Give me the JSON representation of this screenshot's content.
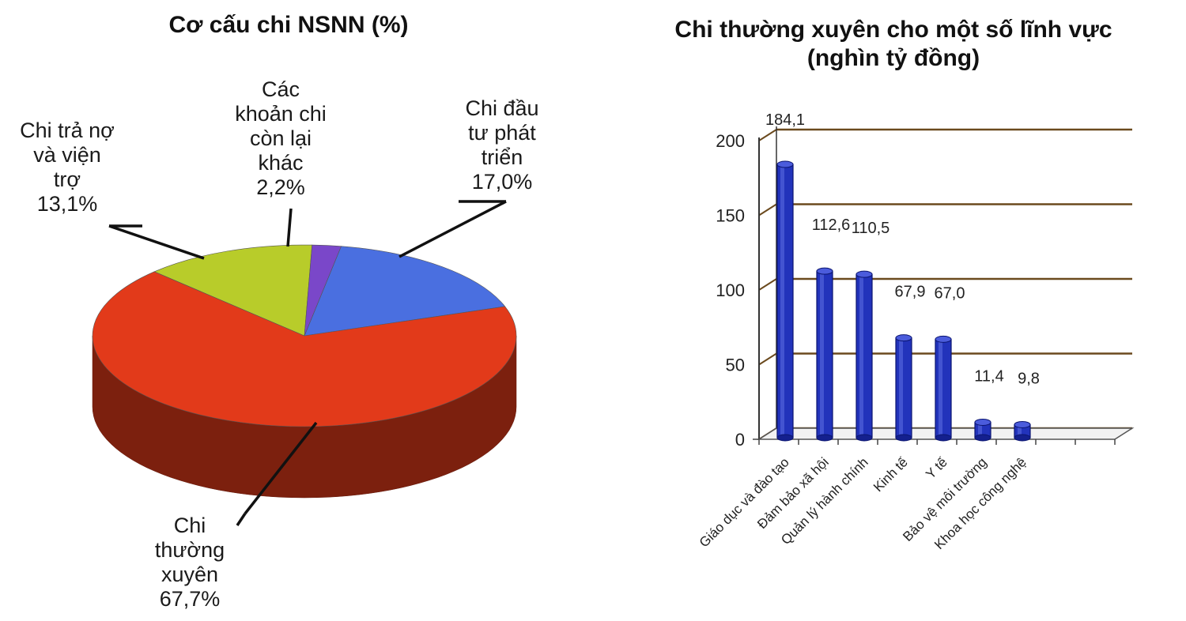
{
  "chart_data": [
    {
      "type": "pie",
      "title": "Cơ cấu chi NSNN (%)",
      "slices": [
        {
          "label_lines": [
            "Chi đầu",
            "tư phát",
            "triển",
            "17,0%"
          ],
          "value": 17.0,
          "color": "#4a6fe0"
        },
        {
          "label_lines": [
            "Chi",
            "thường",
            "xuyên",
            "67,7%"
          ],
          "value": 67.7,
          "color": "#e23a1a"
        },
        {
          "label_lines": [
            "Chi trả nợ",
            "và viện",
            "trợ",
            "13,1%"
          ],
          "value": 13.1,
          "color": "#b8cc2a"
        },
        {
          "label_lines": [
            "Các",
            "khoản chi",
            "còn lại",
            "khác",
            "2,2%"
          ],
          "value": 2.2,
          "color": "#7a47c9"
        }
      ]
    },
    {
      "type": "bar",
      "title": "Chi thường xuyên cho một số lĩnh vực",
      "subtitle": "(nghìn tỷ đồng)",
      "categories": [
        "Giáo dục và đào tạo",
        "Đảm bảo xã hội",
        "Quản lý hành chính",
        "Kinh tế",
        "Y tế",
        "Bảo vệ môi trường",
        "Khoa học công nghệ"
      ],
      "values": [
        184.1,
        112.6,
        110.5,
        67.9,
        67.0,
        11.4,
        9.8
      ],
      "value_labels": [
        "184,1",
        "112,6",
        "110,5",
        "67,9",
        "67,0",
        "11,4",
        "9,8"
      ],
      "yticks": [
        "0",
        "50",
        "100",
        "150",
        "200"
      ],
      "ylim": [
        0,
        200
      ],
      "grid": true,
      "bar_color": "#2233bb"
    }
  ]
}
